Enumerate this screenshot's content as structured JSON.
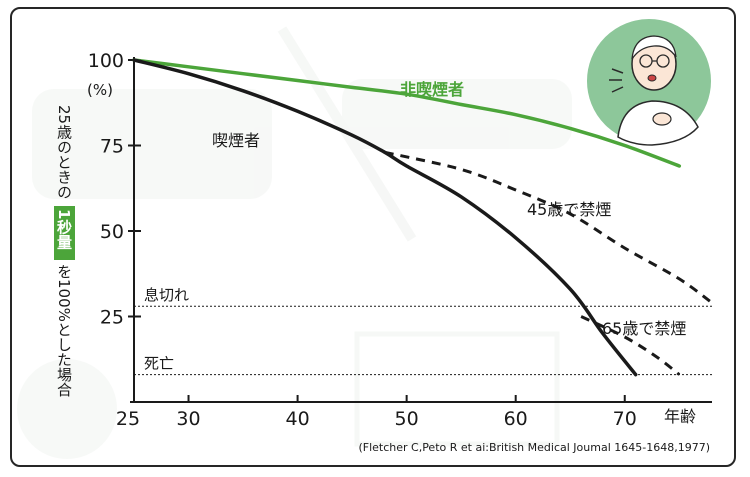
{
  "chart_data": {
    "type": "line",
    "ylabel": {
      "part1": "25歳のときの",
      "highlight": "1秒量",
      "part2": "を100%とした場合"
    },
    "yunit": "(%)",
    "xunit": "年齢",
    "xlim": [
      25,
      78
    ],
    "ylim": [
      0,
      100
    ],
    "xticks": [
      25,
      30,
      40,
      50,
      60,
      70
    ],
    "yticks": [
      100,
      75,
      50,
      25
    ],
    "series": [
      {
        "name": "非喫煙者",
        "color": "#4ca53a",
        "style": "solid",
        "x": [
          25,
          30,
          35,
          40,
          45,
          50,
          55,
          60,
          65,
          70,
          75
        ],
        "y": [
          100,
          98,
          96,
          94,
          92,
          90,
          87,
          84,
          80,
          75,
          69
        ]
      },
      {
        "name": "喫煙者",
        "color": "#1a1a1a",
        "style": "solid",
        "x": [
          25,
          30,
          35,
          40,
          45,
          48,
          50,
          55,
          60,
          65,
          68,
          71
        ],
        "y": [
          100,
          96,
          91,
          85,
          78,
          73,
          69,
          60,
          48,
          33,
          20,
          8
        ]
      },
      {
        "name": "45歳で禁煙",
        "color": "#1a1a1a",
        "style": "dashed",
        "x": [
          48,
          55,
          60,
          65,
          70,
          75,
          78
        ],
        "y": [
          73,
          68,
          62,
          55,
          45,
          36,
          29
        ]
      },
      {
        "name": "65歳で禁煙",
        "color": "#1a1a1a",
        "style": "dashed",
        "x": [
          66,
          70,
          73,
          75
        ],
        "y": [
          25,
          19,
          13,
          8
        ]
      }
    ],
    "reference_lines": [
      {
        "label": "息切れ",
        "y": 28
      },
      {
        "label": "死亡",
        "y": 8
      }
    ],
    "annotation": "(Fletcher C,Peto R et ai:British Medical Joumal 1645-1648,1977)"
  },
  "colors": {
    "green": "#4ca53a",
    "circle": "#8dc79a",
    "black": "#1a1a1a"
  },
  "icons": [
    "coughing-elderly-man-icon"
  ]
}
